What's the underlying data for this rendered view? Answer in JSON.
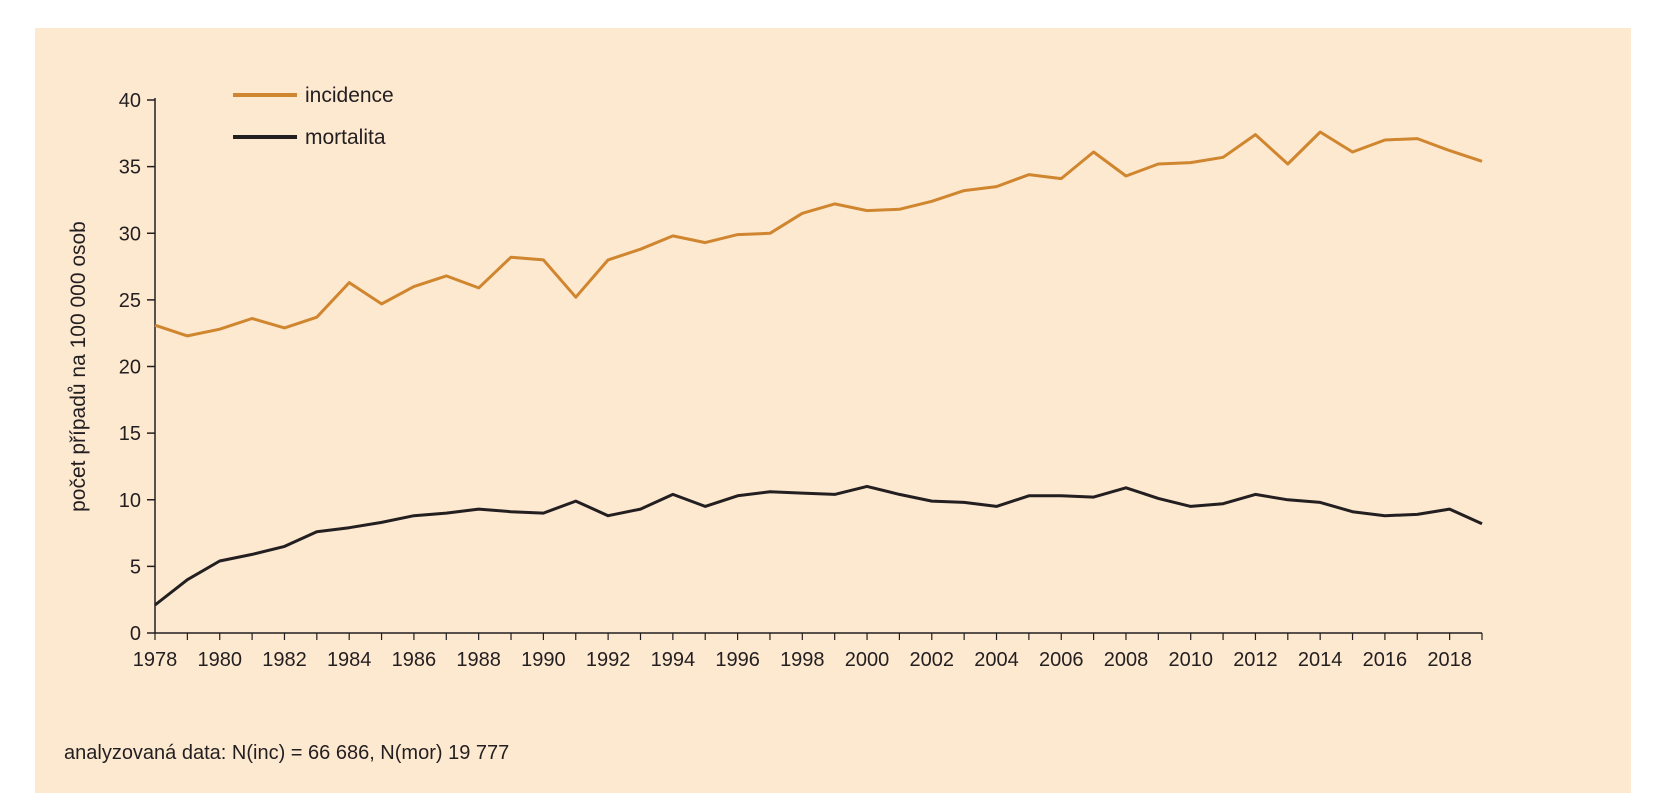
{
  "chart_data": {
    "type": "line",
    "title": "",
    "xlabel": "",
    "ylabel": "počet případů na 100 000 osob",
    "xlim": [
      1978,
      2019
    ],
    "ylim": [
      0,
      40
    ],
    "y_ticks": [
      0,
      5,
      10,
      15,
      20,
      25,
      30,
      35,
      40
    ],
    "x_ticks": [
      1978,
      1980,
      1982,
      1984,
      1986,
      1988,
      1990,
      1992,
      1994,
      1996,
      1998,
      2000,
      2002,
      2004,
      2006,
      2008,
      2010,
      2012,
      2014,
      2016,
      2018
    ],
    "grid": false,
    "legend_position": "top-left",
    "x": [
      1978,
      1979,
      1980,
      1981,
      1982,
      1983,
      1984,
      1985,
      1986,
      1987,
      1988,
      1989,
      1990,
      1991,
      1992,
      1993,
      1994,
      1995,
      1996,
      1997,
      1998,
      1999,
      2000,
      2001,
      2002,
      2003,
      2004,
      2005,
      2006,
      2007,
      2008,
      2009,
      2010,
      2011,
      2012,
      2013,
      2014,
      2015,
      2016,
      2017,
      2018,
      2019
    ],
    "series": [
      {
        "name": "incidence",
        "color": "#d0862f",
        "values": [
          23.1,
          22.3,
          22.8,
          23.6,
          22.9,
          23.7,
          26.3,
          24.7,
          26.0,
          26.8,
          25.9,
          28.2,
          28.0,
          25.2,
          28.0,
          28.8,
          29.8,
          29.3,
          29.9,
          30.0,
          31.5,
          32.2,
          31.7,
          31.8,
          32.4,
          33.2,
          33.5,
          34.4,
          34.1,
          36.1,
          34.3,
          35.2,
          35.3,
          35.7,
          37.4,
          35.2,
          37.6,
          36.1,
          37.0,
          37.1,
          36.2,
          35.4
        ]
      },
      {
        "name": "mortalita",
        "color": "#231f20",
        "values": [
          2.1,
          4.0,
          5.4,
          5.9,
          6.5,
          7.6,
          7.9,
          8.3,
          8.8,
          9.0,
          9.3,
          9.1,
          9.0,
          9.9,
          8.8,
          9.3,
          10.4,
          9.5,
          10.3,
          10.6,
          10.5,
          10.4,
          11.0,
          10.4,
          9.9,
          9.8,
          9.5,
          10.3,
          10.3,
          10.2,
          10.9,
          10.1,
          9.5,
          9.7,
          10.4,
          10.0,
          9.8,
          9.1,
          8.8,
          8.9,
          9.3,
          8.2
        ]
      }
    ]
  },
  "footnote": "analyzovaná data: N(inc) = 66 686, N(mor) 19 777"
}
